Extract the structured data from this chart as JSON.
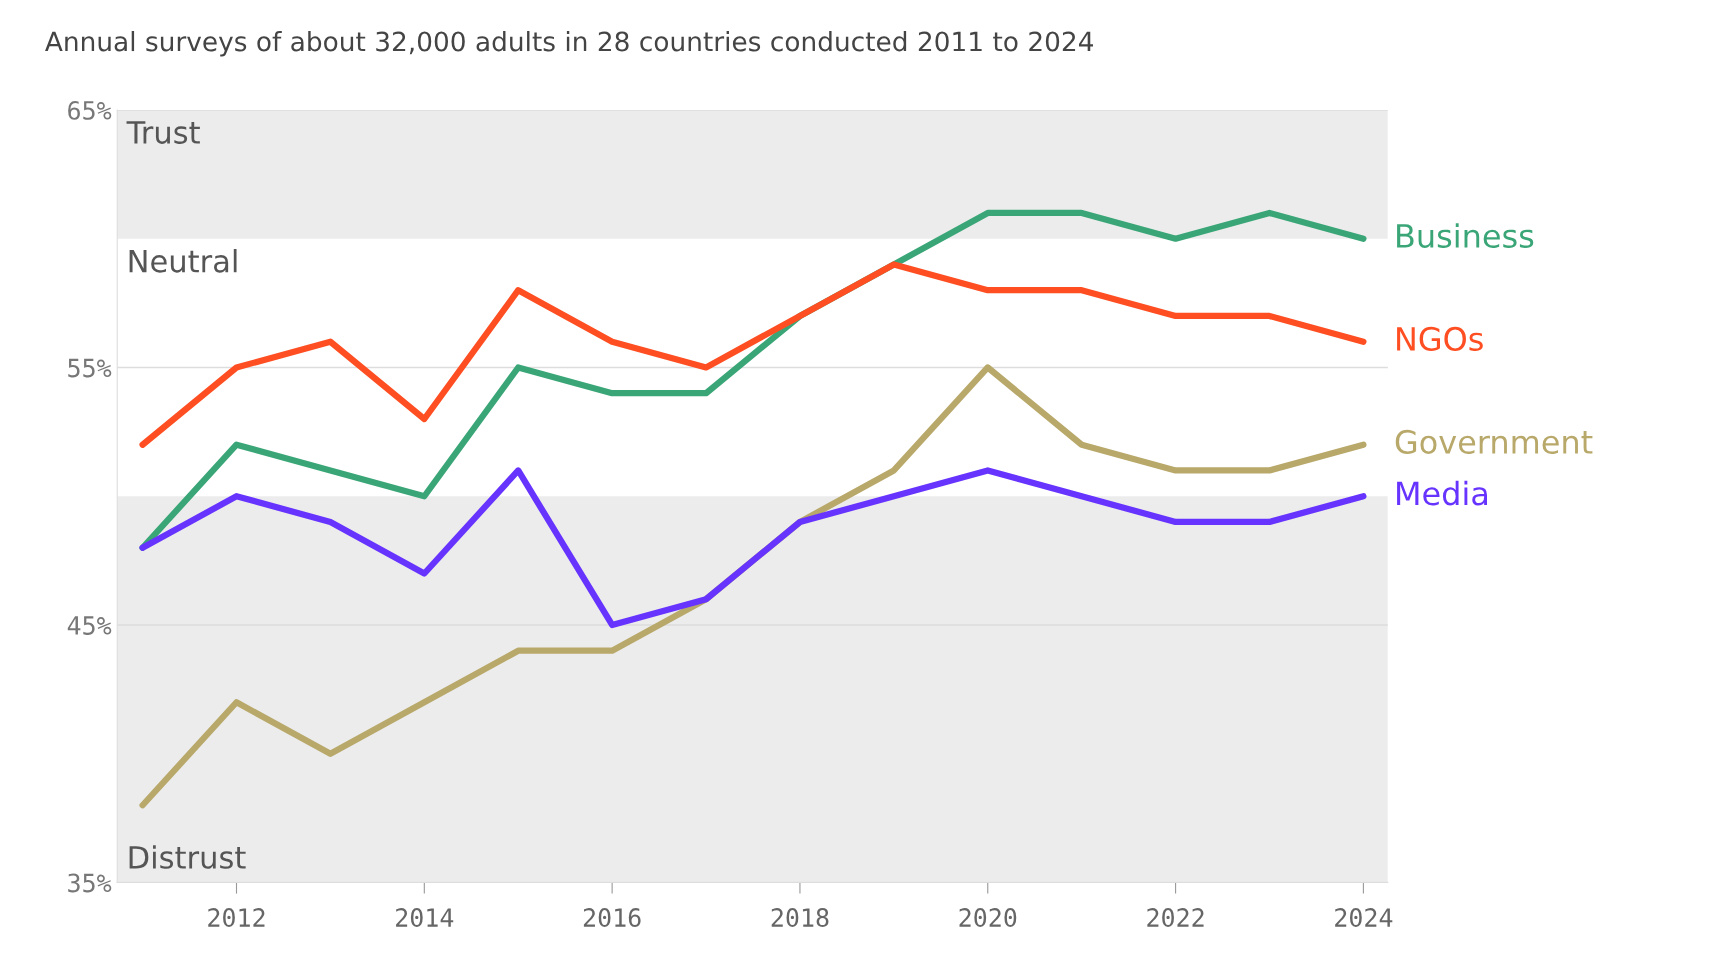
{
  "chart_data": {
    "type": "line",
    "title": "Annual surveys of about 32,000 adults in 28 countries conducted 2011 to 2024",
    "x": [
      2011,
      2012,
      2013,
      2014,
      2015,
      2016,
      2017,
      2018,
      2019,
      2020,
      2021,
      2022,
      2023,
      2024
    ],
    "series": [
      {
        "name": "Business",
        "color": "#3aa677",
        "values": [
          48,
          52,
          51,
          50,
          55,
          54,
          54,
          57,
          59,
          61,
          61,
          60,
          61,
          60
        ]
      },
      {
        "name": "NGOs",
        "color": "#ff4e22",
        "values": [
          52,
          55,
          56,
          53,
          58,
          56,
          55,
          57,
          59,
          58,
          58,
          57,
          57,
          56
        ]
      },
      {
        "name": "Government",
        "color": "#b8a86a",
        "values": [
          38,
          42,
          40,
          42,
          44,
          44,
          46,
          49,
          51,
          55,
          52,
          51,
          51,
          52
        ]
      },
      {
        "name": "Media",
        "color": "#6633ff",
        "values": [
          48,
          50,
          49,
          47,
          51,
          45,
          46,
          49,
          50,
          51,
          50,
          49,
          49,
          50
        ]
      }
    ],
    "bands": [
      {
        "axis": "y",
        "from": 60,
        "to": 65,
        "label": "Trust",
        "color": "#ececec"
      },
      {
        "axis": "y",
        "from": 35,
        "to": 50,
        "label": "Distrust",
        "color": "#ececec"
      }
    ],
    "xlim": [
      2010.73,
      2024.26
    ],
    "xticks": [
      2012,
      2014,
      2016,
      2018,
      2020,
      2022,
      2024
    ],
    "ylim": [
      35,
      65
    ],
    "yticks": [
      {
        "value": 35,
        "label": "35%"
      },
      {
        "value": 45,
        "label": "45%"
      },
      {
        "value": 55,
        "label": "55%"
      },
      {
        "value": 65,
        "label": "65%"
      }
    ],
    "annotations": [
      "Neutral"
    ],
    "grid": "y",
    "legend": false,
    "marker": "none",
    "line_style": "solid"
  }
}
